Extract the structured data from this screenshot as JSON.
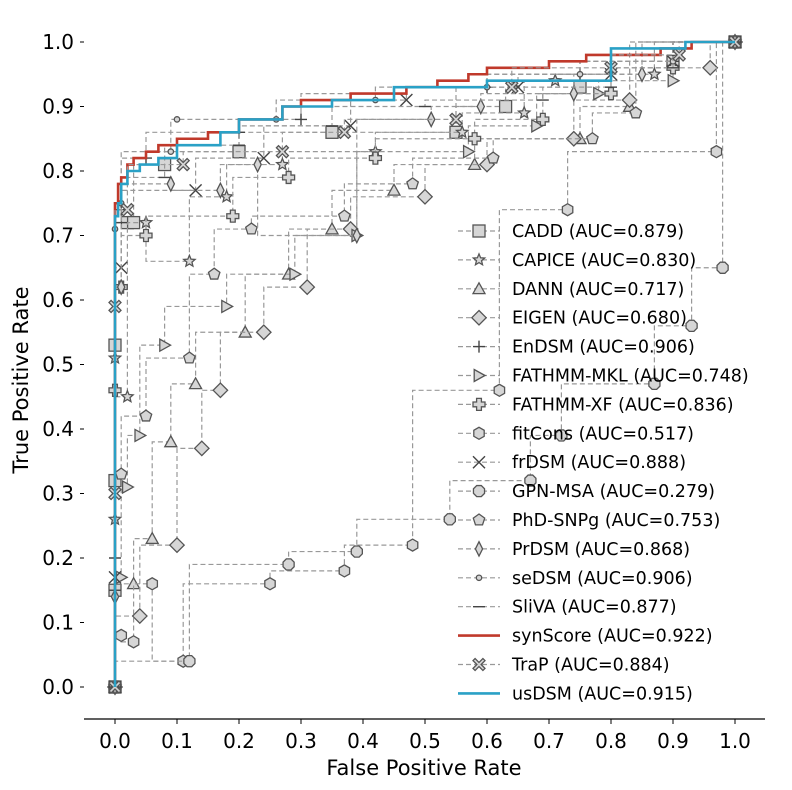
{
  "chart_data": {
    "type": "line",
    "title": "",
    "xlabel": "False Positive Rate",
    "ylabel": "True Positive Rate",
    "xlim": [
      -0.05,
      1.05
    ],
    "ylim": [
      -0.05,
      1.02
    ],
    "x_ticks": [
      "0.0",
      "0.1",
      "0.2",
      "0.3",
      "0.4",
      "0.5",
      "0.6",
      "0.7",
      "0.8",
      "0.9",
      "1.0"
    ],
    "y_ticks": [
      "0.0",
      "0.1",
      "0.2",
      "0.3",
      "0.4",
      "0.5",
      "0.6",
      "0.7",
      "0.8",
      "0.9",
      "1.0"
    ],
    "grid": false,
    "legend_position": "lower-right",
    "series": [
      {
        "name": "CADD (AUC=0.879)",
        "marker": "square",
        "color": "#999999",
        "x": [
          0,
          0,
          0,
          0,
          0.02,
          0.03,
          0.08,
          0.2,
          0.35,
          0.55,
          0.63,
          0.75,
          0.9,
          1.0
        ],
        "y": [
          0,
          0.15,
          0.32,
          0.53,
          0.72,
          0.72,
          0.81,
          0.83,
          0.86,
          0.86,
          0.9,
          0.93,
          0.97,
          1.0
        ]
      },
      {
        "name": "CAPICE (AUC=0.830)",
        "marker": "star",
        "color": "#999999",
        "x": [
          0,
          0,
          0,
          0.02,
          0.05,
          0.12,
          0.18,
          0.27,
          0.42,
          0.56,
          0.66,
          0.71,
          0.87,
          1.0
        ],
        "y": [
          0,
          0.26,
          0.51,
          0.45,
          0.72,
          0.66,
          0.76,
          0.81,
          0.83,
          0.86,
          0.89,
          0.94,
          0.95,
          1.0
        ]
      },
      {
        "name": "DANN (AUC=0.717)",
        "marker": "triangle-up",
        "color": "#999999",
        "x": [
          0,
          0.03,
          0.06,
          0.09,
          0.13,
          0.21,
          0.28,
          0.35,
          0.45,
          0.58,
          0.75,
          0.83,
          1.0
        ],
        "y": [
          0,
          0.16,
          0.23,
          0.38,
          0.47,
          0.55,
          0.64,
          0.71,
          0.77,
          0.81,
          0.85,
          0.9,
          1.0
        ]
      },
      {
        "name": "EIGEN (AUC=0.680)",
        "marker": "diamond",
        "color": "#999999",
        "x": [
          0,
          0.04,
          0.1,
          0.14,
          0.17,
          0.24,
          0.31,
          0.38,
          0.5,
          0.6,
          0.74,
          0.83,
          0.96,
          1.0
        ],
        "y": [
          0,
          0.11,
          0.22,
          0.37,
          0.46,
          0.55,
          0.62,
          0.71,
          0.76,
          0.81,
          0.85,
          0.91,
          0.96,
          1.0
        ]
      },
      {
        "name": "EnDSM (AUC=0.906)",
        "marker": "plus",
        "color": "#999999",
        "x": [
          0,
          0,
          0.01,
          0.05,
          0.2,
          0.3,
          0.45,
          0.6,
          0.75,
          0.9,
          1.0
        ],
        "y": [
          0,
          0.2,
          0.74,
          0.82,
          0.86,
          0.88,
          0.92,
          0.93,
          0.95,
          0.97,
          1.0
        ]
      },
      {
        "name": "FATHMM-MKL (AUC=0.748)",
        "marker": "triangle-right",
        "color": "#999999",
        "x": [
          0,
          0.01,
          0.02,
          0.04,
          0.08,
          0.18,
          0.29,
          0.39,
          0.57,
          0.68,
          0.78,
          0.9,
          1.0
        ],
        "y": [
          0,
          0.17,
          0.31,
          0.39,
          0.53,
          0.59,
          0.64,
          0.7,
          0.83,
          0.87,
          0.92,
          0.94,
          1.0
        ]
      },
      {
        "name": "FATHMM-XF (AUC=0.836)",
        "marker": "cross",
        "color": "#999999",
        "x": [
          0,
          0,
          0.01,
          0.05,
          0.19,
          0.28,
          0.42,
          0.58,
          0.69,
          0.8,
          0.9,
          1.0
        ],
        "y": [
          0,
          0.46,
          0.62,
          0.7,
          0.73,
          0.79,
          0.82,
          0.85,
          0.88,
          0.92,
          0.96,
          1.0
        ]
      },
      {
        "name": "fitCons (AUC=0.517)",
        "marker": "hexagon",
        "color": "#999999",
        "x": [
          0,
          0.01,
          0.03,
          0.06,
          0.11,
          0.25,
          0.37,
          0.48,
          0.62,
          0.73,
          0.97,
          1.0
        ],
        "y": [
          0,
          0.08,
          0.07,
          0.16,
          0.04,
          0.16,
          0.18,
          0.22,
          0.46,
          0.74,
          0.83,
          1.0
        ]
      },
      {
        "name": "frDSM (AUC=0.888)",
        "marker": "x",
        "color": "#999999",
        "x": [
          0,
          0,
          0.01,
          0.13,
          0.24,
          0.38,
          0.47,
          0.65,
          0.8,
          0.9,
          1.0
        ],
        "y": [
          0,
          0.17,
          0.65,
          0.77,
          0.82,
          0.87,
          0.91,
          0.93,
          0.95,
          0.97,
          1.0
        ]
      },
      {
        "name": "GPN-MSA (AUC=0.279)",
        "marker": "octagon",
        "color": "#999999",
        "x": [
          0,
          0.12,
          0.28,
          0.39,
          0.54,
          0.67,
          0.72,
          0.87,
          0.93,
          0.98,
          1.0
        ],
        "y": [
          0,
          0.04,
          0.19,
          0.21,
          0.26,
          0.32,
          0.39,
          0.47,
          0.56,
          0.65,
          1.0
        ]
      },
      {
        "name": "PhD-SNPg (AUC=0.753)",
        "marker": "pentagon",
        "color": "#999999",
        "x": [
          0,
          0.01,
          0.05,
          0.12,
          0.16,
          0.22,
          0.37,
          0.48,
          0.61,
          0.77,
          0.84,
          1.0
        ],
        "y": [
          0,
          0.33,
          0.42,
          0.51,
          0.64,
          0.71,
          0.73,
          0.78,
          0.82,
          0.85,
          0.89,
          1.0
        ]
      },
      {
        "name": "PrDSM (AUC=0.868)",
        "marker": "thin-diamond",
        "color": "#999999",
        "x": [
          0,
          0,
          0.01,
          0.09,
          0.17,
          0.23,
          0.39,
          0.51,
          0.59,
          0.74,
          0.85,
          1.0
        ],
        "y": [
          0,
          0.14,
          0.62,
          0.78,
          0.77,
          0.81,
          0.7,
          0.88,
          0.9,
          0.92,
          0.95,
          1.0
        ]
      },
      {
        "name": "seDSM (AUC=0.906)",
        "marker": "circle",
        "color": "#999999",
        "x": [
          0,
          0,
          0.01,
          0.09,
          0.1,
          0.26,
          0.42,
          0.6,
          0.75,
          0.9,
          1.0
        ],
        "y": [
          0,
          0.71,
          0.75,
          0.83,
          0.88,
          0.88,
          0.91,
          0.93,
          0.95,
          0.97,
          1.0
        ]
      },
      {
        "name": "SliVA (AUC=0.877)",
        "marker": "hline",
        "color": "#999999",
        "x": [
          0,
          0,
          0.01,
          0.08,
          0.2,
          0.35,
          0.5,
          0.69,
          0.8,
          0.9,
          1.0
        ],
        "y": [
          0,
          0.15,
          0.72,
          0.79,
          0.84,
          0.87,
          0.9,
          0.91,
          0.93,
          0.96,
          1.0
        ]
      },
      {
        "name": "synScore (AUC=0.922)",
        "marker": "none",
        "color": "#c0392b",
        "dashed": false,
        "x": [
          0,
          0,
          0.005,
          0.01,
          0.02,
          0.03,
          0.05,
          0.07,
          0.1,
          0.15,
          0.2,
          0.27,
          0.3,
          0.38,
          0.47,
          0.52,
          0.57,
          0.6,
          0.7,
          0.76,
          0.88,
          0.93,
          1.0
        ],
        "y": [
          0,
          0.72,
          0.75,
          0.78,
          0.79,
          0.81,
          0.82,
          0.83,
          0.84,
          0.85,
          0.86,
          0.88,
          0.9,
          0.91,
          0.92,
          0.93,
          0.94,
          0.95,
          0.96,
          0.97,
          0.98,
          0.99,
          1.0
        ]
      },
      {
        "name": "TraP (AUC=0.884)",
        "marker": "x-filled",
        "color": "#999999",
        "x": [
          0,
          0,
          0,
          0.02,
          0.11,
          0.27,
          0.37,
          0.55,
          0.64,
          0.8,
          0.91,
          1.0
        ],
        "y": [
          0,
          0.3,
          0.59,
          0.74,
          0.81,
          0.83,
          0.86,
          0.88,
          0.93,
          0.96,
          0.98,
          1.0
        ]
      },
      {
        "name": "usDSM (AUC=0.915)",
        "marker": "none",
        "color": "#2aa1c6",
        "dashed": false,
        "x": [
          0,
          0,
          0.005,
          0.01,
          0.02,
          0.04,
          0.07,
          0.1,
          0.17,
          0.2,
          0.27,
          0.35,
          0.45,
          0.6,
          0.8,
          0.92,
          1.0
        ],
        "y": [
          0,
          0.7,
          0.73,
          0.75,
          0.78,
          0.8,
          0.81,
          0.82,
          0.84,
          0.86,
          0.88,
          0.9,
          0.91,
          0.93,
          0.94,
          0.99,
          1.0
        ]
      }
    ]
  }
}
